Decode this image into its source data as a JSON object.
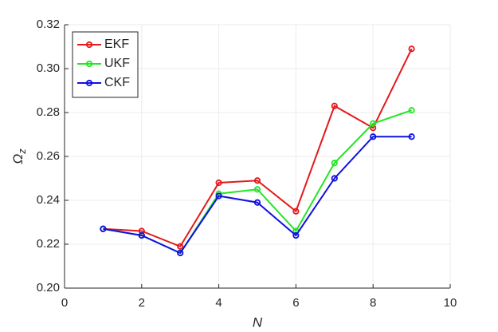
{
  "chart_data": {
    "type": "line",
    "xlabel": "N",
    "ylabel": {
      "symbol": "Ω",
      "subscript": "z"
    },
    "x": [
      1,
      2,
      3,
      4,
      5,
      6,
      7,
      8,
      9
    ],
    "series": [
      {
        "name": "EKF",
        "color": "#e41a1c",
        "values": [
          0.227,
          0.226,
          0.219,
          0.248,
          0.249,
          0.235,
          0.283,
          0.273,
          0.309
        ]
      },
      {
        "name": "UKF",
        "color": "#22e622",
        "values": [
          0.227,
          0.224,
          0.216,
          0.243,
          0.245,
          0.226,
          0.257,
          0.275,
          0.281
        ]
      },
      {
        "name": "CKF",
        "color": "#1010e0",
        "values": [
          0.227,
          0.224,
          0.216,
          0.242,
          0.239,
          0.224,
          0.25,
          0.269,
          0.269
        ]
      }
    ],
    "xlim": [
      0,
      10
    ],
    "xticks": [
      0,
      2,
      4,
      6,
      8,
      10
    ],
    "ylim": [
      0.2,
      0.32
    ],
    "yticks": [
      {
        "value": 0.2,
        "label": "0.20"
      },
      {
        "value": 0.22,
        "label": "0.22"
      },
      {
        "value": 0.24,
        "label": "0.24"
      },
      {
        "value": 0.26,
        "label": "0.26"
      },
      {
        "value": 0.28,
        "label": "0.28"
      },
      {
        "value": 0.3,
        "label": "0.30"
      },
      {
        "value": 0.32,
        "label": "0.32"
      }
    ],
    "grid": true,
    "legend": "upper-left"
  }
}
